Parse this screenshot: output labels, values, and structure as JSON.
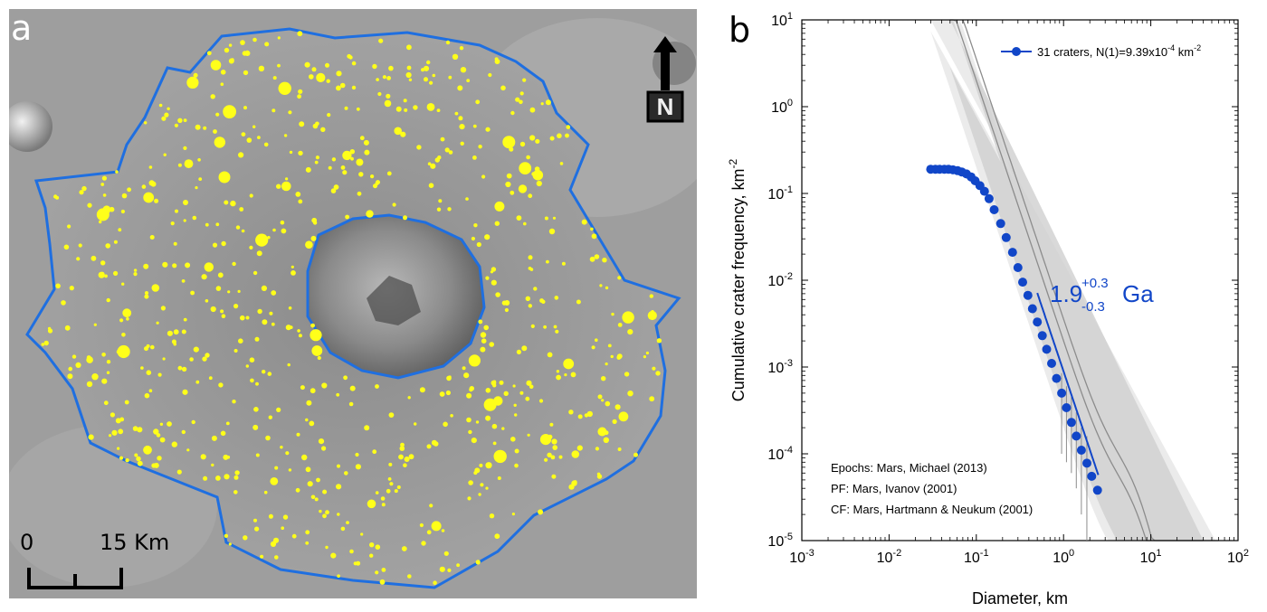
{
  "panel_a": {
    "letter": "a",
    "north_label": "N",
    "scale_zero": "0",
    "scale_max": "15 Km",
    "colors": {
      "outline": "#1f6fe0",
      "craters": "#ffff1a",
      "terrain": "#9c9c9c"
    }
  },
  "chart_data": {
    "type": "scatter",
    "panel_letter": "b",
    "xscale": "log",
    "yscale": "log",
    "xlim": [
      0.001,
      100
    ],
    "ylim": [
      1e-05,
      10
    ],
    "xlabel": "Diameter, km",
    "ylabel": "Cumulative crater frequency, km",
    "ylabel_exp": "-2",
    "x_ticks": [
      {
        "base": "10",
        "exp": "-3"
      },
      {
        "base": "10",
        "exp": "-2"
      },
      {
        "base": "10",
        "exp": "-1"
      },
      {
        "base": "10",
        "exp": "0"
      },
      {
        "base": "10",
        "exp": "1"
      },
      {
        "base": "10",
        "exp": "2"
      }
    ],
    "y_ticks": [
      {
        "base": "10",
        "exp": "-5"
      },
      {
        "base": "10",
        "exp": "-4"
      },
      {
        "base": "10",
        "exp": "-3"
      },
      {
        "base": "10",
        "exp": "-2"
      },
      {
        "base": "10",
        "exp": "-1"
      },
      {
        "base": "10",
        "exp": "0"
      },
      {
        "base": "10",
        "exp": "1"
      }
    ],
    "legend": {
      "position": "top-right",
      "text": "31 craters, N(1)=9.39x10",
      "exp": "-4",
      "unit": " km",
      "unit_exp": "-2"
    },
    "age_label": {
      "value": "1.9",
      "plus": "+0.3",
      "minus": "-0.3",
      "unit": "Ga"
    },
    "notes": [
      "Epochs: Mars, Michael (2013)",
      "PF: Mars, Ivanov (2001)",
      "CF: Mars, Hartmann & Neukum (2001)"
    ],
    "series": [
      {
        "name": "31 craters, N(1)=9.39x10-4 km-2",
        "color": "#1146c8",
        "points": [
          [
            0.03,
            0.19
          ],
          [
            0.034,
            0.19
          ],
          [
            0.038,
            0.19
          ],
          [
            0.043,
            0.19
          ],
          [
            0.048,
            0.19
          ],
          [
            0.054,
            0.187
          ],
          [
            0.061,
            0.183
          ],
          [
            0.068,
            0.177
          ],
          [
            0.077,
            0.168
          ],
          [
            0.087,
            0.155
          ],
          [
            0.097,
            0.14
          ],
          [
            0.11,
            0.123
          ],
          [
            0.124,
            0.106
          ],
          [
            0.14,
            0.087
          ],
          [
            0.16,
            0.065
          ],
          [
            0.19,
            0.045
          ],
          [
            0.22,
            0.031
          ],
          [
            0.26,
            0.021
          ],
          [
            0.3,
            0.014
          ],
          [
            0.34,
            0.0095
          ],
          [
            0.39,
            0.0067
          ],
          [
            0.44,
            0.0047
          ],
          [
            0.5,
            0.0033
          ],
          [
            0.57,
            0.0023
          ],
          [
            0.64,
            0.0016
          ],
          [
            0.73,
            0.0011
          ],
          [
            0.83,
            0.00074
          ],
          [
            0.95,
            0.0005
          ],
          [
            1.08,
            0.00034
          ],
          [
            1.23,
            0.00023
          ],
          [
            1.4,
            0.00016
          ],
          [
            1.6,
            0.00011
          ],
          [
            1.85,
            7.8e-05
          ],
          [
            2.1,
            5.5e-05
          ],
          [
            2.45,
            3.8e-05
          ]
        ],
        "error_bars": [
          [
            0.95,
            0.0001,
            0.00085
          ],
          [
            1.08,
            8e-05,
            0.0006
          ],
          [
            1.23,
            6e-05,
            0.00045
          ],
          [
            1.4,
            4e-05,
            0.0003
          ],
          [
            1.6,
            2e-05,
            0.0002
          ],
          [
            1.85,
            1e-05,
            0.00016
          ]
        ]
      }
    ],
    "fit_line": {
      "color": "#1146c8",
      "x_range": [
        0.5,
        2.5
      ]
    },
    "reference_curves": [
      {
        "name": "",
        "color": "#8c8c8c",
        "x_range": [
          0.05,
          40
        ]
      },
      {
        "name": "",
        "color": "#8c8c8c",
        "x_range": [
          0.07,
          60
        ]
      }
    ]
  }
}
